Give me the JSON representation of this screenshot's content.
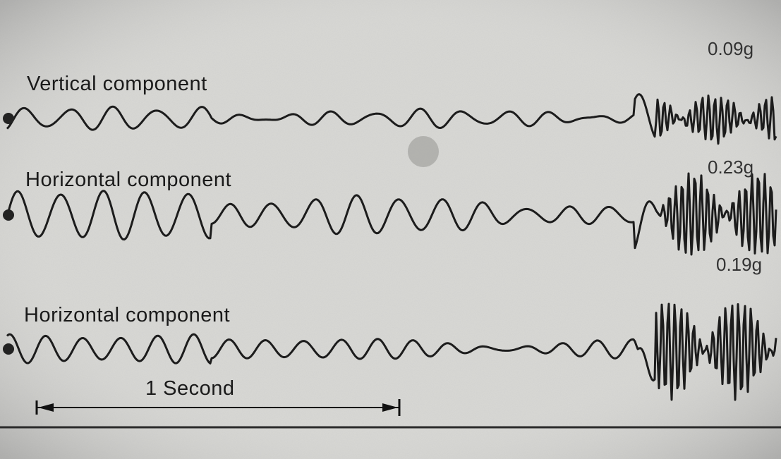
{
  "traces": [
    {
      "label": "Vertical component",
      "peak": "0.09g"
    },
    {
      "label": "Horizontal component",
      "peak": "0.23g"
    },
    {
      "label": "Horizontal component",
      "peak": "0.19g"
    }
  ],
  "scale": {
    "label": "1 Second"
  }
}
